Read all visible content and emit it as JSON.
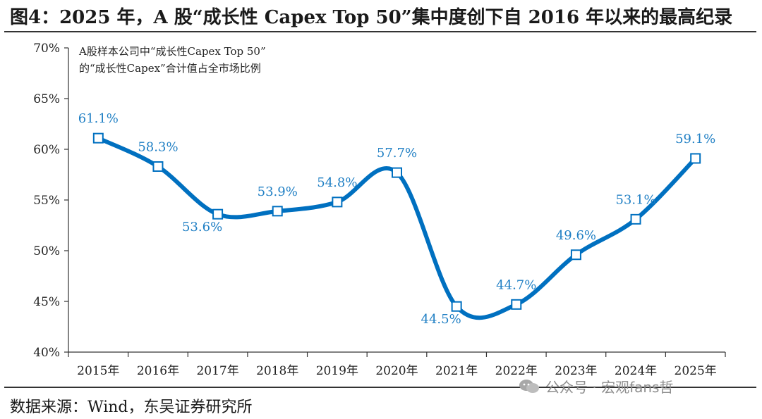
{
  "header": {
    "title": "图4：2025 年，A 股“成长性 Capex Top 50”集中度创下自 2016 年以来的最高纪录"
  },
  "footer": {
    "source": "数据来源：Wind，东吴证券研究所",
    "watermark": "公众号 · 宏观fans哲"
  },
  "chart_data": {
    "type": "line",
    "x": [
      "2015年",
      "2016年",
      "2017年",
      "2018年",
      "2019年",
      "2020年",
      "2021年",
      "2022年",
      "2023年",
      "2024年",
      "2025年"
    ],
    "series": [
      {
        "values": [
          61.1,
          58.3,
          53.6,
          53.9,
          54.8,
          57.7,
          44.5,
          44.7,
          49.6,
          53.1,
          59.1
        ],
        "labels": [
          "61.1%",
          "58.3%",
          "53.6%",
          "53.9%",
          "54.8%",
          "57.7%",
          "44.5%",
          "44.7%",
          "49.6%",
          "53.1%",
          "59.1%"
        ],
        "color": "#0070c0"
      }
    ],
    "ylim": [
      40,
      70
    ],
    "yticks": [
      40,
      45,
      50,
      55,
      60,
      65,
      70
    ],
    "ytick_labels": [
      "40%",
      "45%",
      "50%",
      "55%",
      "60%",
      "65%",
      "70%"
    ],
    "annotation": [
      "A股样本公司中“成长性Capex Top 50”",
      "的“成长性Capex”合计值占全市场比例"
    ],
    "grid": false,
    "label_color": "#1f7fc4"
  }
}
